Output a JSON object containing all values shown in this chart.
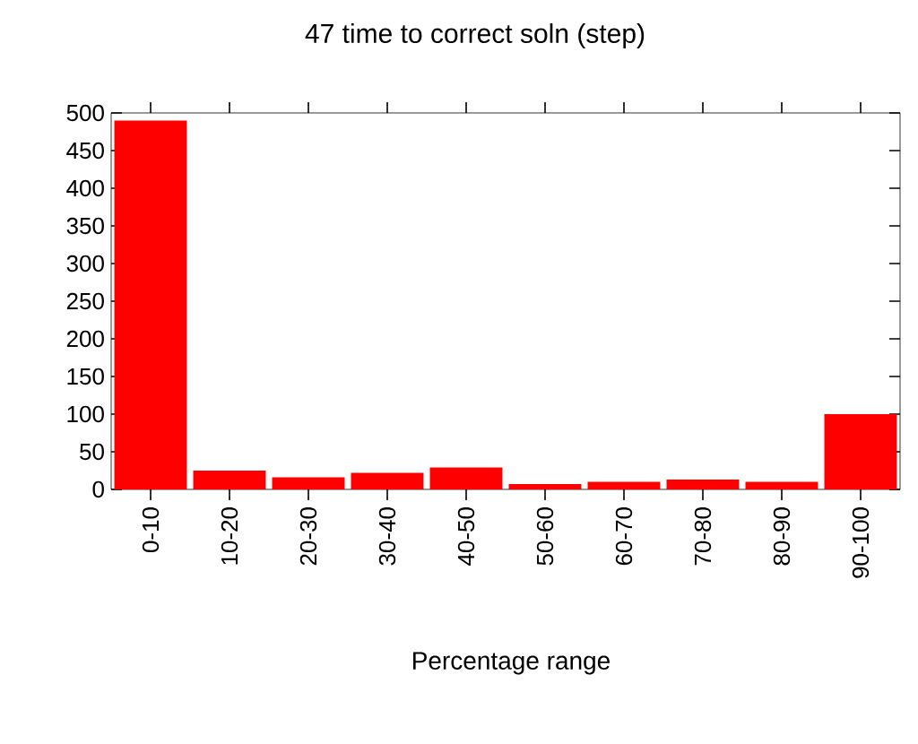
{
  "chart_data": {
    "type": "bar",
    "title": "47 time to correct soln (step)",
    "xlabel": "Percentage range",
    "categories": [
      "0-10",
      "10-20",
      "20-30",
      "30-40",
      "40-50",
      "50-60",
      "60-70",
      "70-80",
      "80-90",
      "90-100"
    ],
    "values": [
      490,
      25,
      16,
      22,
      29,
      7,
      10,
      13,
      10,
      100
    ],
    "color": "#ff0000",
    "ylim": [
      0,
      500
    ],
    "yticks": [
      0,
      50,
      100,
      150,
      200,
      250,
      300,
      350,
      400,
      450,
      500
    ],
    "grid": false
  }
}
